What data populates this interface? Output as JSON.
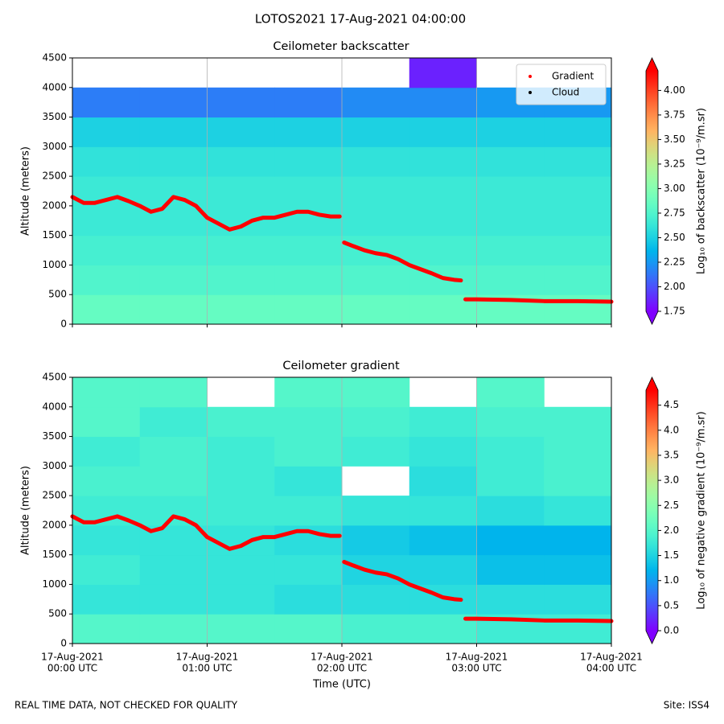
{
  "title": "LOTOS2021 17-Aug-2021 04:00:00",
  "footer_left": "REAL TIME DATA, NOT CHECKED FOR QUALITY",
  "footer_right": "Site: ISS4",
  "chart_data": [
    {
      "type": "heatmap",
      "title": "Ceilometer backscatter",
      "ylabel": "Altitude (meters)",
      "ylim": [
        0,
        4500
      ],
      "yticks": [
        0,
        500,
        1000,
        1500,
        2000,
        2500,
        3000,
        3500,
        4000,
        4500
      ],
      "xlim": [
        "00:00",
        "04:00"
      ],
      "xticks": [
        "00:00",
        "01:00",
        "02:00",
        "03:00",
        "04:00"
      ],
      "grid": "x",
      "colormap": "rainbow",
      "clim": [
        1.75,
        4.2
      ],
      "cticks": [
        1.75,
        {
          "value": 2,
          "label": "2.00"
        },
        2.25,
        {
          "value": 2.5,
          "label": "2.50"
        },
        2.75,
        {
          "value": 3,
          "label": "3.00"
        },
        3.25,
        {
          "value": 3.5,
          "label": "3.50"
        },
        3.75,
        {
          "value": 4,
          "label": "4.00"
        }
      ],
      "colorbar_label": "Log₁₀ of backscatter (10⁻⁹/m.sr)",
      "z_x": [
        "00:00",
        "00:30",
        "01:00",
        "01:30",
        "02:00",
        "02:30",
        "03:00",
        "03:30",
        "04:00"
      ],
      "z_y": [
        0,
        500,
        1000,
        1500,
        2000,
        2500,
        3000,
        3500,
        4000,
        4500
      ],
      "z": [
        [
          2.85,
          2.85,
          2.85,
          2.85,
          2.85,
          2.85,
          2.85,
          2.85
        ],
        [
          2.75,
          2.75,
          2.75,
          2.75,
          2.75,
          2.75,
          2.75,
          2.75
        ],
        [
          2.7,
          2.7,
          2.7,
          2.7,
          2.7,
          2.7,
          2.7,
          2.7
        ],
        [
          2.65,
          2.65,
          2.65,
          2.65,
          2.65,
          2.65,
          2.65,
          2.65
        ],
        [
          2.65,
          2.65,
          2.65,
          2.65,
          2.65,
          2.65,
          2.65,
          2.65
        ],
        [
          2.6,
          2.6,
          2.6,
          2.6,
          2.6,
          2.6,
          2.6,
          2.6
        ],
        [
          2.5,
          2.5,
          2.5,
          2.5,
          2.5,
          2.5,
          2.5,
          2.5
        ],
        [
          2.15,
          2.15,
          2.15,
          2.15,
          2.2,
          2.2,
          2.25,
          2.25
        ],
        [
          null,
          null,
          null,
          null,
          null,
          1.85,
          null,
          null
        ]
      ],
      "series": [
        {
          "name": "Gradient",
          "color": "#ff0000",
          "x": [
            "00:00",
            "00:05",
            "00:10",
            "00:15",
            "00:20",
            "00:25",
            "00:30",
            "00:35",
            "00:40",
            "00:45",
            "00:50",
            "00:55",
            "01:00",
            "01:05",
            "01:10",
            "01:15",
            "01:20",
            "01:25",
            "01:30",
            "01:35",
            "01:40",
            "01:45",
            "01:50",
            "01:55",
            "01:59",
            "02:00",
            "02:01",
            "02:05",
            "02:10",
            "02:15",
            "02:20",
            "02:25",
            "02:30",
            "02:35",
            "02:40",
            "02:45",
            "02:50",
            "02:53",
            "02:54",
            "02:55",
            "03:00",
            "03:15",
            "03:30",
            "03:45",
            "04:00"
          ],
          "values": [
            2150,
            2050,
            2050,
            2100,
            2150,
            2080,
            2000,
            1900,
            1950,
            2150,
            2100,
            2000,
            1800,
            1700,
            1600,
            1650,
            1750,
            1800,
            1800,
            1850,
            1900,
            1900,
            1850,
            1820,
            1820,
            null,
            1380,
            1320,
            1250,
            1200,
            1170,
            1100,
            1000,
            930,
            860,
            780,
            750,
            740,
            null,
            420,
            420,
            410,
            390,
            390,
            380
          ]
        },
        {
          "name": "Cloud",
          "color": "#000000",
          "x": [],
          "values": []
        }
      ],
      "legend": "upper right"
    },
    {
      "type": "heatmap",
      "title": "Ceilometer gradient",
      "ylabel": "Altitude (meters)",
      "xlabel": "Time (UTC)",
      "ylim": [
        0,
        4500
      ],
      "yticks": [
        0,
        500,
        1000,
        1500,
        2000,
        2500,
        3000,
        3500,
        4000,
        4500
      ],
      "xlim": [
        "00:00",
        "04:00"
      ],
      "xticks": [
        {
          "value": "00:00",
          "label": [
            "17-Aug-2021",
            "00:00 UTC"
          ]
        },
        {
          "value": "01:00",
          "label": [
            "17-Aug-2021",
            "01:00 UTC"
          ]
        },
        {
          "value": "02:00",
          "label": [
            "17-Aug-2021",
            "02:00 UTC"
          ]
        },
        {
          "value": "03:00",
          "label": [
            "17-Aug-2021",
            "03:00 UTC"
          ]
        },
        {
          "value": "04:00",
          "label": [
            "17-Aug-2021",
            "04:00 UTC"
          ]
        }
      ],
      "grid": "x",
      "colormap": "rainbow",
      "clim": [
        0,
        4.8
      ],
      "cticks": [
        {
          "value": 0,
          "label": "0.0"
        },
        0.5,
        {
          "value": 1,
          "label": "1.0"
        },
        1.5,
        {
          "value": 2,
          "label": "2.0"
        },
        2.5,
        {
          "value": 3,
          "label": "3.0"
        },
        3.5,
        {
          "value": 4,
          "label": "4.0"
        },
        4.5
      ],
      "colorbar_label": "Log₁₀ of negative gradient (10⁻⁹/m.sr)",
      "z_x": [
        "00:00",
        "00:30",
        "01:00",
        "01:30",
        "02:00",
        "02:30",
        "03:00",
        "03:30",
        "04:00"
      ],
      "z_y": [
        0,
        500,
        1000,
        1500,
        2000,
        2500,
        3000,
        3500,
        4000,
        4500
      ],
      "z": [
        [
          2.0,
          2.0,
          2.0,
          2.0,
          1.9,
          1.9,
          1.8,
          1.8
        ],
        [
          1.7,
          1.7,
          1.7,
          1.6,
          1.6,
          1.6,
          1.6,
          1.6
        ],
        [
          1.8,
          1.7,
          1.7,
          1.7,
          1.5,
          1.5,
          1.3,
          1.3
        ],
        [
          1.7,
          1.7,
          1.7,
          1.6,
          1.4,
          1.3,
          1.2,
          1.2
        ],
        [
          1.8,
          1.8,
          1.8,
          1.8,
          1.7,
          1.7,
          1.6,
          1.7
        ],
        [
          1.9,
          1.9,
          1.8,
          1.7,
          null,
          1.6,
          1.8,
          1.9
        ],
        [
          1.8,
          1.9,
          1.8,
          1.9,
          1.8,
          1.7,
          1.8,
          1.9
        ],
        [
          2.0,
          1.8,
          1.9,
          1.9,
          1.9,
          1.8,
          1.9,
          1.9
        ],
        [
          2.0,
          2.0,
          null,
          2.0,
          2.0,
          null,
          2.0,
          null
        ]
      ],
      "series": [
        {
          "name": "Gradient",
          "color": "#ff0000",
          "x": [
            "00:00",
            "00:05",
            "00:10",
            "00:15",
            "00:20",
            "00:25",
            "00:30",
            "00:35",
            "00:40",
            "00:45",
            "00:50",
            "00:55",
            "01:00",
            "01:05",
            "01:10",
            "01:15",
            "01:20",
            "01:25",
            "01:30",
            "01:35",
            "01:40",
            "01:45",
            "01:50",
            "01:55",
            "01:59",
            "02:00",
            "02:01",
            "02:05",
            "02:10",
            "02:15",
            "02:20",
            "02:25",
            "02:30",
            "02:35",
            "02:40",
            "02:45",
            "02:50",
            "02:53",
            "02:54",
            "02:55",
            "03:00",
            "03:15",
            "03:30",
            "03:45",
            "04:00"
          ],
          "values": [
            2150,
            2050,
            2050,
            2100,
            2150,
            2080,
            2000,
            1900,
            1950,
            2150,
            2100,
            2000,
            1800,
            1700,
            1600,
            1650,
            1750,
            1800,
            1800,
            1850,
            1900,
            1900,
            1850,
            1820,
            1820,
            null,
            1380,
            1320,
            1250,
            1200,
            1170,
            1100,
            1000,
            930,
            860,
            780,
            750,
            740,
            null,
            420,
            420,
            410,
            390,
            390,
            380
          ]
        }
      ]
    }
  ]
}
